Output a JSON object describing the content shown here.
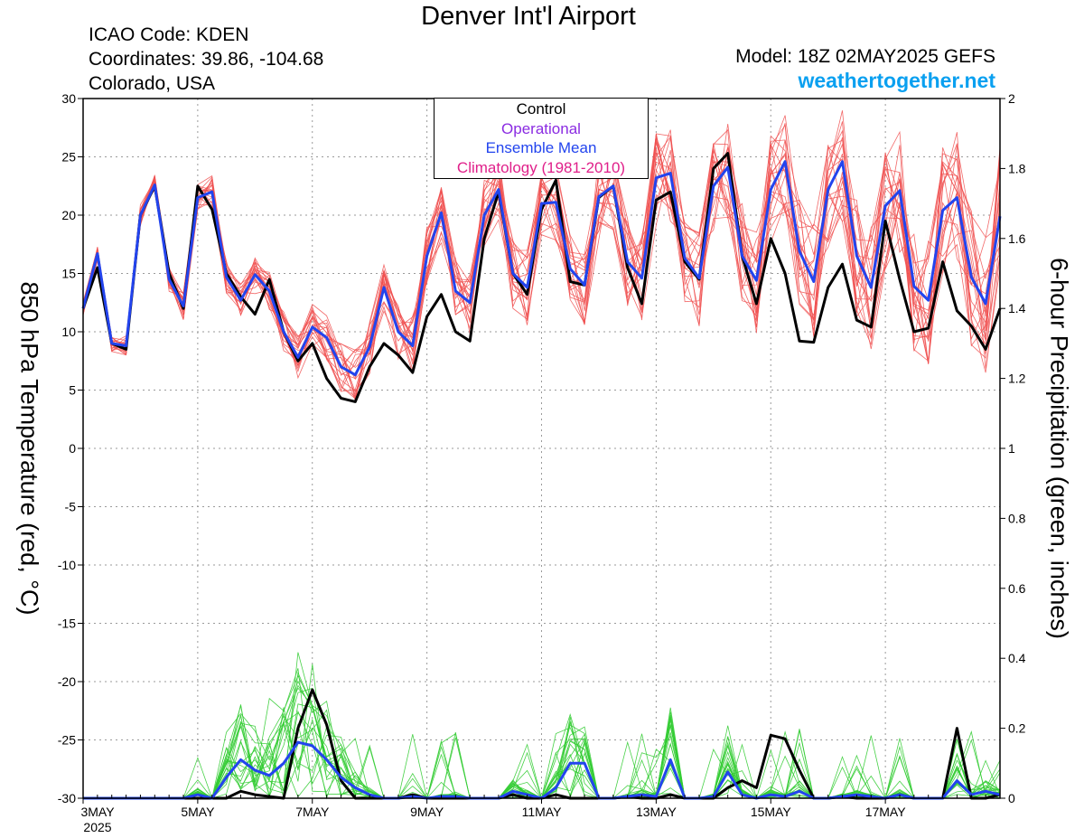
{
  "header": {
    "title": "Denver Int'l Airport",
    "icao": "ICAO Code: KDEN",
    "coordinates": "Coordinates: 39.86, -104.68",
    "region": "Colorado, USA",
    "model": "Model: 18Z 02MAY2025 GEFS",
    "site": "weathertogether.net"
  },
  "legend": {
    "control": "Control",
    "operational": "Operational",
    "ensemble_mean": "Ensemble Mean",
    "climatology": "Climatology (1981-2010)"
  },
  "colors": {
    "temperature_members": "#f05050",
    "precip_members": "#33cc33",
    "control": "#000000",
    "operational": "#8a2be2",
    "ensemble_mean": "#2244ee",
    "climatology": "#e0208a",
    "site_link": "#0aa0f0"
  },
  "chart_data": {
    "type": "line",
    "title": "Denver Int'l Airport",
    "ylabel": "850 hPa Temperature (red, °C)",
    "y2label": "6-hour Precipitation (green, inches)",
    "ylim": [
      -30,
      30
    ],
    "y2lim": [
      0,
      2
    ],
    "yticks": [
      30,
      25,
      20,
      15,
      10,
      5,
      0,
      -5,
      -10,
      -15,
      -20,
      -25,
      -30
    ],
    "y2ticks": [
      2,
      1.8,
      1.6,
      1.4,
      1.2,
      1,
      0.8,
      0.6,
      0.4,
      0.2,
      0
    ],
    "x_step_hours": 6,
    "xticks": [
      {
        "step": 0,
        "label": "3MAY",
        "sub": "2025"
      },
      {
        "step": 8,
        "label": "5MAY",
        "sub": ""
      },
      {
        "step": 16,
        "label": "7MAY",
        "sub": ""
      },
      {
        "step": 24,
        "label": "9MAY",
        "sub": ""
      },
      {
        "step": 32,
        "label": "11MAY",
        "sub": ""
      },
      {
        "step": 40,
        "label": "13MAY",
        "sub": ""
      },
      {
        "step": 48,
        "label": "15MAY",
        "sub": ""
      },
      {
        "step": 56,
        "label": "17MAY",
        "sub": ""
      }
    ],
    "grid": true,
    "legend_position": "top-center",
    "series": [
      {
        "name": "Control",
        "axis": "temperature",
        "values": [
          12,
          15.5,
          9,
          8.5,
          20,
          22.5,
          15,
          12,
          22.5,
          20.5,
          15,
          13,
          11.5,
          14.5,
          10,
          7.5,
          9,
          6,
          4.3,
          4,
          7,
          9,
          8,
          6.5,
          11.3,
          13.2,
          10,
          9.2,
          18,
          22,
          15,
          13.2,
          20.5,
          23,
          14.3,
          14,
          21.5,
          22.5,
          15.5,
          12.4,
          21.3,
          22,
          16,
          14.5,
          24,
          25.3,
          16.5,
          12.4,
          18,
          15,
          9.2,
          9.1,
          13.8,
          15.8,
          11,
          10.4,
          19.5,
          14.5,
          10,
          10.3,
          16,
          11.8,
          10.5,
          8.5,
          12
        ]
      },
      {
        "name": "Ensemble Mean",
        "axis": "temperature",
        "values": [
          12,
          16.7,
          9,
          8.8,
          20,
          22.6,
          14.5,
          12.2,
          21.5,
          22,
          14.7,
          12.7,
          14.9,
          13.5,
          10,
          7.8,
          10.4,
          9.5,
          7,
          6.3,
          8.7,
          13.8,
          10,
          8.8,
          16.5,
          20.2,
          13.5,
          12.5,
          20,
          22.2,
          15,
          13.8,
          21,
          21.1,
          15.4,
          14,
          21.6,
          22.5,
          16,
          14.6,
          23.2,
          23.6,
          16.3,
          14.6,
          22.5,
          24.1,
          16.5,
          14.4,
          22.2,
          24.6,
          16.9,
          14.3,
          22.2,
          24.6,
          16.5,
          13.8,
          20.8,
          22.1,
          13.9,
          12.7,
          20.4,
          21.5,
          14.7,
          12.4,
          19.9
        ]
      },
      {
        "name": "Control",
        "axis": "precipitation",
        "values": [
          0,
          0,
          0,
          0,
          0,
          0,
          0,
          0,
          0,
          0,
          0,
          0.02,
          0.01,
          0.005,
          0,
          0.2,
          0.31,
          0.21,
          0.05,
          0,
          0,
          0,
          0,
          0.01,
          0,
          0,
          0,
          0,
          0,
          0,
          0.01,
          0,
          0,
          0.01,
          0,
          0,
          0,
          0,
          0.005,
          0,
          0,
          0.01,
          0,
          0,
          0,
          0.03,
          0.05,
          0.03,
          0.18,
          0.17,
          0.08,
          0,
          0,
          0.005,
          0,
          0,
          0,
          0.01,
          0,
          0,
          0,
          0.2,
          0,
          0,
          0.01
        ]
      },
      {
        "name": "Ensemble Mean",
        "axis": "precipitation",
        "values": [
          0,
          0,
          0,
          0,
          0,
          0,
          0,
          0,
          0.01,
          0,
          0.06,
          0.11,
          0.08,
          0.065,
          0.1,
          0.16,
          0.15,
          0.11,
          0.06,
          0.03,
          0.01,
          0,
          0,
          0.005,
          0,
          0.005,
          0.005,
          0,
          0,
          0,
          0.02,
          0.01,
          0,
          0.03,
          0.1,
          0.1,
          0,
          0,
          0.005,
          0.01,
          0.005,
          0.11,
          0,
          0,
          0.005,
          0.075,
          0.01,
          0,
          0.01,
          0.005,
          0.02,
          0,
          0,
          0.005,
          0.01,
          0.005,
          0,
          0.01,
          0,
          0,
          0,
          0.05,
          0.01,
          0.02,
          0.01
        ]
      }
    ]
  }
}
